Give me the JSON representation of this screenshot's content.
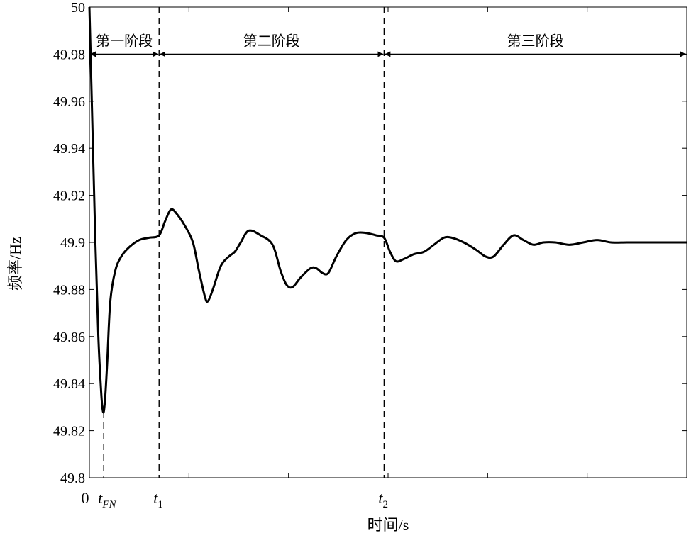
{
  "chart_data": {
    "type": "line",
    "xlabel": "时间/s",
    "ylabel": "频率/Hz",
    "ylim": [
      49.8,
      50
    ],
    "xlim": [
      0,
      30
    ],
    "grid": false,
    "y_ticks": [
      49.8,
      49.82,
      49.84,
      49.86,
      49.88,
      49.9,
      49.92,
      49.94,
      49.96,
      49.98,
      50
    ],
    "y_tick_labels": [
      "49.8",
      "49.82",
      "49.84",
      "49.86",
      "49.88",
      "49.9",
      "49.92",
      "49.94",
      "49.96",
      "49.98",
      "50"
    ],
    "x_ticks": [
      0,
      5,
      10,
      15,
      20,
      25,
      30
    ],
    "x_tick_labels": [
      {
        "x": 0,
        "main": "0",
        "sub": ""
      },
      {
        "x": 0.72,
        "main": "t",
        "sub": "FN"
      },
      {
        "x": 3.5,
        "main": "t",
        "sub": "1"
      },
      {
        "x": 14.8,
        "main": "t",
        "sub": "2"
      }
    ],
    "markers": [
      {
        "name": "t_FN",
        "x": 0.72,
        "y_top": 49.828
      },
      {
        "name": "t1",
        "x": 3.5,
        "y_top": 50
      },
      {
        "name": "t2",
        "x": 14.8,
        "y_top": 50
      }
    ],
    "stages": [
      {
        "label": "第一阶段",
        "x_start": 0,
        "x_end": 3.5
      },
      {
        "label": "第二阶段",
        "x_start": 3.5,
        "x_end": 14.8
      },
      {
        "label": "第三阶段",
        "x_start": 14.8,
        "x_end": 30
      }
    ],
    "stage_arrow_y": 49.98,
    "series": [
      {
        "color": "#000000",
        "points": [
          [
            0,
            50.0
          ],
          [
            0.15,
            49.95
          ],
          [
            0.3,
            49.9
          ],
          [
            0.45,
            49.86
          ],
          [
            0.58,
            49.838
          ],
          [
            0.65,
            49.83
          ],
          [
            0.72,
            49.828
          ],
          [
            0.8,
            49.835
          ],
          [
            0.9,
            49.85
          ],
          [
            1.05,
            49.875
          ],
          [
            1.3,
            49.888
          ],
          [
            1.6,
            49.894
          ],
          [
            2.0,
            49.898
          ],
          [
            2.5,
            49.901
          ],
          [
            3.0,
            49.902
          ],
          [
            3.5,
            49.903
          ],
          [
            3.8,
            49.909
          ],
          [
            4.1,
            49.914
          ],
          [
            4.4,
            49.912
          ],
          [
            4.8,
            49.907
          ],
          [
            5.2,
            49.9
          ],
          [
            5.5,
            49.888
          ],
          [
            5.8,
            49.877
          ],
          [
            5.95,
            49.875
          ],
          [
            6.2,
            49.88
          ],
          [
            6.6,
            49.89
          ],
          [
            7.0,
            49.894
          ],
          [
            7.3,
            49.896
          ],
          [
            7.6,
            49.9
          ],
          [
            8.0,
            49.905
          ],
          [
            8.6,
            49.903
          ],
          [
            9.2,
            49.899
          ],
          [
            9.6,
            49.888
          ],
          [
            9.9,
            49.882
          ],
          [
            10.2,
            49.881
          ],
          [
            10.6,
            49.885
          ],
          [
            11.1,
            49.889
          ],
          [
            11.4,
            49.889
          ],
          [
            11.7,
            49.887
          ],
          [
            12.0,
            49.887
          ],
          [
            12.4,
            49.894
          ],
          [
            12.9,
            49.901
          ],
          [
            13.4,
            49.904
          ],
          [
            13.9,
            49.904
          ],
          [
            14.4,
            49.903
          ],
          [
            14.8,
            49.902
          ],
          [
            15.1,
            49.896
          ],
          [
            15.4,
            49.892
          ],
          [
            15.8,
            49.893
          ],
          [
            16.3,
            49.895
          ],
          [
            16.8,
            49.896
          ],
          [
            17.3,
            49.899
          ],
          [
            17.8,
            49.902
          ],
          [
            18.2,
            49.902
          ],
          [
            18.8,
            49.9
          ],
          [
            19.4,
            49.897
          ],
          [
            19.9,
            49.894
          ],
          [
            20.3,
            49.894
          ],
          [
            20.8,
            49.899
          ],
          [
            21.3,
            49.903
          ],
          [
            21.8,
            49.901
          ],
          [
            22.3,
            49.899
          ],
          [
            22.8,
            49.9
          ],
          [
            23.4,
            49.9
          ],
          [
            24.1,
            49.899
          ],
          [
            24.8,
            49.9
          ],
          [
            25.5,
            49.901
          ],
          [
            26.2,
            49.9
          ],
          [
            27.0,
            49.9
          ],
          [
            28.0,
            49.9
          ],
          [
            29.0,
            49.9
          ],
          [
            30.0,
            49.9
          ]
        ]
      }
    ]
  }
}
